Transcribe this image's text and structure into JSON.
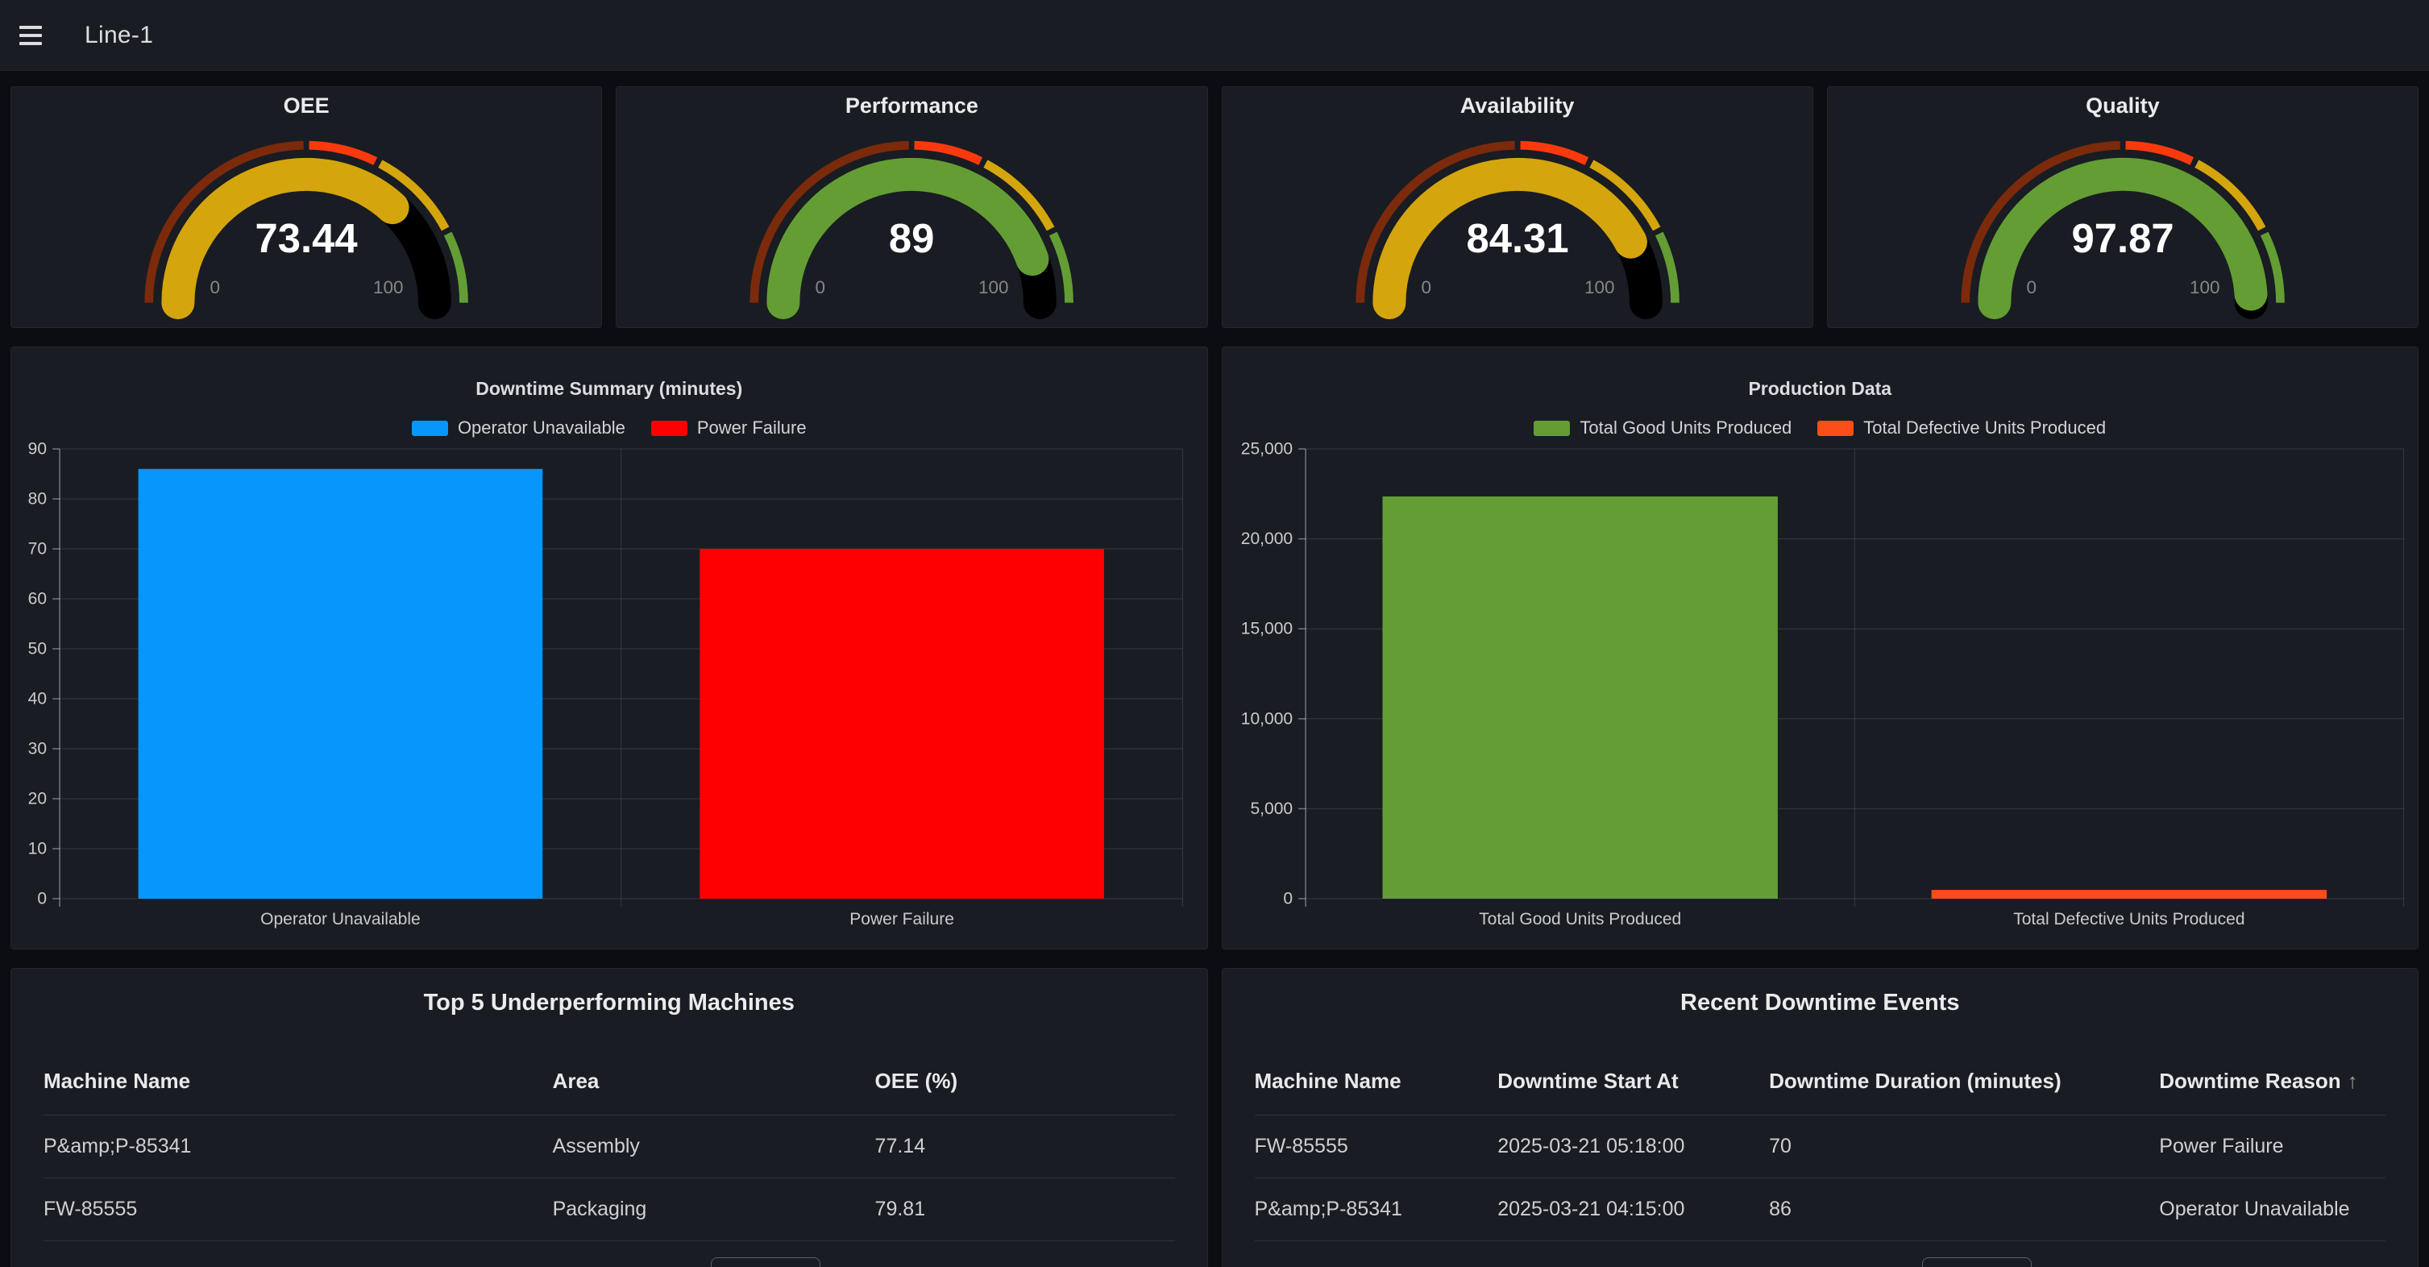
{
  "top_bar": {
    "title": "Line-1"
  },
  "gauge_scale": {
    "min": 0,
    "max": 100,
    "min_label": "0",
    "max_label": "100"
  },
  "gauge_thresholds": [
    {
      "from": 0,
      "to": 50,
      "color": "#7b2a0b"
    },
    {
      "from": 50,
      "to": 65,
      "color": "#fb390d"
    },
    {
      "from": 65,
      "to": 85,
      "color": "#d4a50d"
    },
    {
      "from": 85,
      "to": 100,
      "color": "#639d33"
    }
  ],
  "gauges": [
    {
      "title": "OEE",
      "value": 73.44,
      "display": "73.44",
      "value_color": "#d4a50d"
    },
    {
      "title": "Performance",
      "value": 89,
      "display": "89",
      "value_color": "#639d33"
    },
    {
      "title": "Availability",
      "value": 84.31,
      "display": "84.31",
      "value_color": "#d4a50d"
    },
    {
      "title": "Quality",
      "value": 97.87,
      "display": "97.87",
      "value_color": "#639d33"
    }
  ],
  "chart_data": [
    {
      "type": "bar",
      "title": "Downtime Summary (minutes)",
      "categories": [
        "Operator Unavailable",
        "Power Failure"
      ],
      "series": [
        {
          "name": "Operator Unavailable",
          "color": "#0796fc",
          "value": 86
        },
        {
          "name": "Power Failure",
          "color": "#fe0000",
          "value": 70
        }
      ],
      "ylim": [
        0,
        90
      ],
      "ytick_step": 10,
      "grid": true,
      "legend_position": "top",
      "xlabel": "",
      "ylabel": ""
    },
    {
      "type": "bar",
      "title": "Production Data",
      "categories": [
        "Total Good Units Produced",
        "Total Defective Units Produced"
      ],
      "series": [
        {
          "name": "Total Good Units Produced",
          "color": "#639d33",
          "value": 22360
        },
        {
          "name": "Total Defective Units Produced",
          "color": "#fa4d17",
          "value": 487
        }
      ],
      "ylim": [
        0,
        25000
      ],
      "ytick_step": 5000,
      "grid": true,
      "legend_position": "top",
      "xlabel": "",
      "ylabel": ""
    }
  ],
  "tables": [
    {
      "title": "Top 5 Underperforming Machines",
      "columns": [
        "Machine Name",
        "Area",
        "OEE (%)"
      ],
      "rows": [
        [
          "P&amp;P-85341",
          "Assembly",
          "77.14"
        ],
        [
          "FW-85555",
          "Packaging",
          "79.81"
        ]
      ]
    },
    {
      "title": "Recent Downtime Events",
      "columns": [
        "Machine Name",
        "Downtime Start At",
        "Downtime Duration (minutes)",
        "Downtime Reason"
      ],
      "sort_column": "Downtime Reason",
      "sort_indicator": "↑",
      "rows": [
        [
          "FW-85555",
          "2025-03-21 05:18:00",
          "70",
          "Power Failure"
        ],
        [
          "P&amp;P-85341",
          "2025-03-21 04:15:00",
          "86",
          "Operator Unavailable"
        ]
      ]
    }
  ],
  "colors": {
    "canvas_bg": "#0c0d12",
    "panel_bg": "#191c23",
    "gauge_remainder": "#000000",
    "axis_text": "#c9cacd",
    "gauge_minmax_text": "#85878b"
  }
}
